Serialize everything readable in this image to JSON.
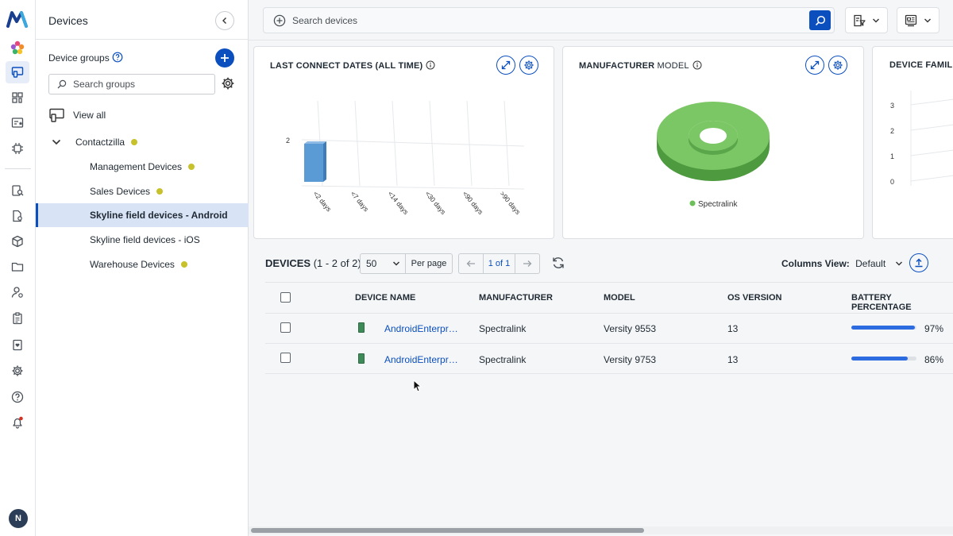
{
  "sidebar": {
    "title": "Devices",
    "device_groups_label": "Device groups",
    "search_placeholder": "Search groups",
    "view_all": "View all",
    "tree": [
      {
        "label": "Contactzilla",
        "dot": true
      },
      {
        "label": "Management Devices",
        "dot": true
      },
      {
        "label": "Sales Devices",
        "dot": true
      },
      {
        "label": "Skyline field devices - Android",
        "dot": false,
        "selected": true
      },
      {
        "label": "Skyline field devices - iOS",
        "dot": false
      },
      {
        "label": "Warehouse Devices",
        "dot": true
      }
    ],
    "avatar_initial": "N"
  },
  "search": {
    "placeholder": "Search devices"
  },
  "cards": {
    "last_connect": {
      "title": "LAST CONNECT DATES (ALL TIME)",
      "chart_data": {
        "type": "bar",
        "categories": [
          "<2 days",
          "<7 days",
          "<14 days",
          "<30 days",
          "<90 days",
          ">90 days"
        ],
        "values": [
          2,
          0,
          0,
          0,
          0,
          0
        ],
        "yticks": [
          "2"
        ]
      }
    },
    "manufacturer_model": {
      "title_bold": "MANUFACTURER",
      "title_rest": " MODEL",
      "chart_data": {
        "type": "pie",
        "labels": [
          "Spectralink"
        ],
        "values": [
          2
        ],
        "legend": "Spectralink",
        "color": "#6dbf5a"
      }
    },
    "device_family": {
      "title": "DEVICE FAMIL",
      "yticks": [
        "3",
        "2",
        "1",
        "0"
      ]
    }
  },
  "devices": {
    "title": "DEVICES",
    "count": " (1 - 2 of 2)",
    "per_page_value": "50",
    "per_page_label": "Per page",
    "page": "1 of 1",
    "columns_view_label": "Columns View:",
    "columns_view_value": "Default",
    "headers": [
      "DEVICE NAME",
      "MANUFACTURER",
      "MODEL",
      "OS VERSION",
      "BATTERY PERCENTAGE"
    ],
    "rows": [
      {
        "name": "AndroidEnterpr…",
        "manufacturer": "Spectralink",
        "model": "Versity 9553",
        "os": "13",
        "battery": 97,
        "battery_label": "97%"
      },
      {
        "name": "AndroidEnterpr…",
        "manufacturer": "Spectralink",
        "model": "Versity 9753",
        "os": "13",
        "battery": 86,
        "battery_label": "86%"
      }
    ]
  },
  "colors": {
    "accent": "#0b4fbf",
    "selected_bg": "#d8e4f5",
    "group_dot": "#c7c12b",
    "chart_bar": "#5b9bd5",
    "donut": "#6dbf5a"
  }
}
